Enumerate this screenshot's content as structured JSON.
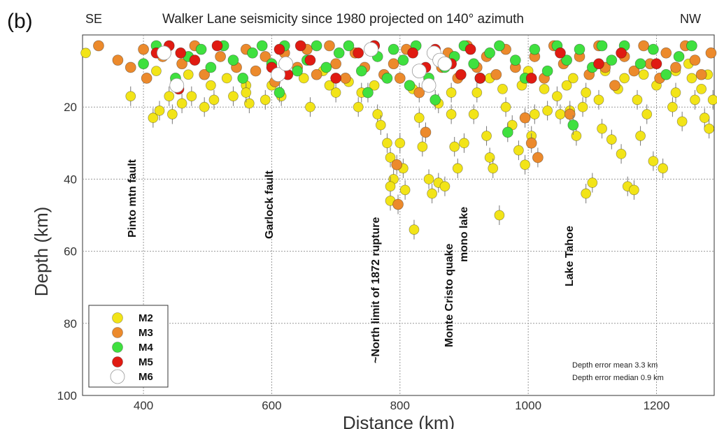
{
  "chart_data": {
    "type": "scatter",
    "panel_label": "(b)",
    "title": "Walker Lane seismicity since 1980 projected on 140° azimuth",
    "left_direction": "SE",
    "right_direction": "NW",
    "xlabel": "Distance (km)",
    "ylabel": "Depth (km)",
    "xlim": [
      305,
      1290
    ],
    "ylim": [
      0,
      100
    ],
    "y_inverted": true,
    "x_ticks": [
      400,
      600,
      800,
      1000,
      1200
    ],
    "y_ticks": [
      20,
      40,
      60,
      80,
      100
    ],
    "grid": true,
    "legend_position": "bottom-left",
    "colors": {
      "M2": "#f2e418",
      "M3": "#ec8a2c",
      "M4": "#3fe03f",
      "M5": "#e01b12",
      "M6": "#ffffff"
    },
    "series": [
      {
        "name": "M2",
        "points": [
          [
            310,
            5
          ],
          [
            415,
            23
          ],
          [
            425,
            21
          ],
          [
            440,
            17
          ],
          [
            445,
            22
          ],
          [
            460,
            19
          ],
          [
            475,
            17
          ],
          [
            495,
            20
          ],
          [
            510,
            18
          ],
          [
            540,
            17
          ],
          [
            565,
            19
          ],
          [
            590,
            18
          ],
          [
            615,
            17
          ],
          [
            660,
            20
          ],
          [
            700,
            16
          ],
          [
            735,
            20
          ],
          [
            765,
            22
          ],
          [
            770,
            25
          ],
          [
            780,
            30
          ],
          [
            785,
            34
          ],
          [
            790,
            40
          ],
          [
            800,
            30
          ],
          [
            805,
            37
          ],
          [
            808,
            43
          ],
          [
            785,
            42
          ],
          [
            785,
            46
          ],
          [
            822,
            54
          ],
          [
            830,
            23
          ],
          [
            835,
            31
          ],
          [
            845,
            40
          ],
          [
            850,
            44
          ],
          [
            860,
            41
          ],
          [
            870,
            42
          ],
          [
            880,
            22
          ],
          [
            885,
            31
          ],
          [
            890,
            37
          ],
          [
            900,
            30
          ],
          [
            915,
            22
          ],
          [
            935,
            28
          ],
          [
            940,
            34
          ],
          [
            945,
            37
          ],
          [
            955,
            50
          ],
          [
            965,
            20
          ],
          [
            975,
            25
          ],
          [
            985,
            32
          ],
          [
            995,
            36
          ],
          [
            1005,
            28
          ],
          [
            1010,
            22
          ],
          [
            1030,
            21
          ],
          [
            1050,
            22
          ],
          [
            1065,
            21
          ],
          [
            1075,
            28
          ],
          [
            1085,
            20
          ],
          [
            1090,
            44
          ],
          [
            1100,
            41
          ],
          [
            1115,
            26
          ],
          [
            1130,
            29
          ],
          [
            1145,
            33
          ],
          [
            1155,
            42
          ],
          [
            1165,
            43
          ],
          [
            1175,
            28
          ],
          [
            1185,
            22
          ],
          [
            1195,
            35
          ],
          [
            1210,
            37
          ],
          [
            1225,
            20
          ],
          [
            1240,
            24
          ],
          [
            1260,
            18
          ],
          [
            1275,
            23
          ],
          [
            1282,
            26
          ],
          [
            1288,
            18
          ],
          [
            380,
            17
          ],
          [
            470,
            11
          ],
          [
            530,
            12
          ],
          [
            560,
            14
          ],
          [
            650,
            12
          ],
          [
            690,
            14
          ],
          [
            720,
            13
          ],
          [
            760,
            14
          ],
          [
            860,
            19
          ],
          [
            880,
            16
          ],
          [
            920,
            16
          ],
          [
            960,
            15
          ],
          [
            990,
            14
          ],
          [
            1025,
            15
          ],
          [
            1045,
            17
          ],
          [
            1070,
            12
          ],
          [
            1090,
            16
          ],
          [
            1110,
            18
          ],
          [
            1140,
            15
          ],
          [
            1170,
            18
          ],
          [
            1200,
            14
          ],
          [
            1230,
            16
          ],
          [
            1255,
            12
          ],
          [
            1270,
            15
          ],
          [
            1280,
            11
          ],
          [
            1250,
            8
          ],
          [
            1230,
            10
          ],
          [
            1180,
            11
          ],
          [
            1150,
            12
          ],
          [
            1120,
            10
          ],
          [
            1060,
            14
          ],
          [
            1000,
            10
          ],
          [
            940,
            12
          ],
          [
            820,
            15
          ],
          [
            740,
            16
          ],
          [
            680,
            10
          ],
          [
            600,
            14
          ],
          [
            560,
            16
          ],
          [
            505,
            14
          ],
          [
            450,
            13
          ],
          [
            420,
            10
          ]
        ]
      },
      {
        "name": "M3",
        "points": [
          [
            330,
            3
          ],
          [
            360,
            7
          ],
          [
            380,
            9
          ],
          [
            400,
            4
          ],
          [
            405,
            12
          ],
          [
            430,
            6
          ],
          [
            460,
            8
          ],
          [
            480,
            3
          ],
          [
            495,
            11
          ],
          [
            520,
            6
          ],
          [
            545,
            9
          ],
          [
            560,
            4
          ],
          [
            575,
            10
          ],
          [
            590,
            6
          ],
          [
            605,
            13
          ],
          [
            620,
            5
          ],
          [
            640,
            9
          ],
          [
            655,
            4
          ],
          [
            670,
            11
          ],
          [
            690,
            3
          ],
          [
            700,
            8
          ],
          [
            715,
            12
          ],
          [
            730,
            5
          ],
          [
            745,
            9
          ],
          [
            760,
            3
          ],
          [
            775,
            11
          ],
          [
            790,
            8
          ],
          [
            800,
            12
          ],
          [
            810,
            4
          ],
          [
            830,
            16
          ],
          [
            840,
            27
          ],
          [
            865,
            9
          ],
          [
            875,
            5
          ],
          [
            890,
            12
          ],
          [
            905,
            3
          ],
          [
            920,
            9
          ],
          [
            935,
            6
          ],
          [
            950,
            11
          ],
          [
            965,
            4
          ],
          [
            980,
            9
          ],
          [
            995,
            23
          ],
          [
            1010,
            6
          ],
          [
            1015,
            34
          ],
          [
            1025,
            12
          ],
          [
            1040,
            3
          ],
          [
            1055,
            8
          ],
          [
            1065,
            22
          ],
          [
            1080,
            6
          ],
          [
            1095,
            11
          ],
          [
            1110,
            3
          ],
          [
            1120,
            9
          ],
          [
            1135,
            14
          ],
          [
            1150,
            6
          ],
          [
            1165,
            10
          ],
          [
            1180,
            3
          ],
          [
            1190,
            8
          ],
          [
            1205,
            12
          ],
          [
            1215,
            5
          ],
          [
            1230,
            9
          ],
          [
            1245,
            3
          ],
          [
            1260,
            7
          ],
          [
            1270,
            11
          ],
          [
            1285,
            5
          ],
          [
            795,
            36
          ],
          [
            797,
            47
          ],
          [
            1005,
            30
          ]
        ]
      },
      {
        "name": "M4",
        "points": [
          [
            400,
            8
          ],
          [
            420,
            3
          ],
          [
            450,
            12
          ],
          [
            470,
            6
          ],
          [
            490,
            4
          ],
          [
            505,
            9
          ],
          [
            525,
            3
          ],
          [
            540,
            7
          ],
          [
            555,
            12
          ],
          [
            570,
            5
          ],
          [
            585,
            3
          ],
          [
            600,
            8
          ],
          [
            612,
            16
          ],
          [
            620,
            3
          ],
          [
            640,
            10
          ],
          [
            655,
            7
          ],
          [
            670,
            3
          ],
          [
            685,
            9
          ],
          [
            705,
            5
          ],
          [
            720,
            3
          ],
          [
            740,
            10
          ],
          [
            750,
            16
          ],
          [
            765,
            6
          ],
          [
            780,
            12
          ],
          [
            790,
            4
          ],
          [
            805,
            7
          ],
          [
            815,
            14
          ],
          [
            825,
            3
          ],
          [
            845,
            12
          ],
          [
            855,
            18
          ],
          [
            870,
            9
          ],
          [
            885,
            6
          ],
          [
            900,
            3
          ],
          [
            915,
            8
          ],
          [
            925,
            12
          ],
          [
            940,
            5
          ],
          [
            955,
            3
          ],
          [
            968,
            27
          ],
          [
            980,
            7
          ],
          [
            995,
            12
          ],
          [
            1010,
            4
          ],
          [
            1030,
            10
          ],
          [
            1045,
            3
          ],
          [
            1060,
            7
          ],
          [
            1070,
            25
          ],
          [
            1080,
            4
          ],
          [
            1100,
            9
          ],
          [
            1115,
            3
          ],
          [
            1130,
            7
          ],
          [
            1150,
            3
          ],
          [
            1175,
            8
          ],
          [
            1195,
            4
          ],
          [
            1215,
            11
          ],
          [
            1235,
            6
          ],
          [
            1255,
            3
          ]
        ]
      },
      {
        "name": "M5",
        "points": [
          [
            420,
            5
          ],
          [
            440,
            3
          ],
          [
            458,
            5
          ],
          [
            455,
            15
          ],
          [
            480,
            7
          ],
          [
            515,
            3
          ],
          [
            600,
            9
          ],
          [
            612,
            4
          ],
          [
            625,
            11
          ],
          [
            645,
            3
          ],
          [
            660,
            7
          ],
          [
            700,
            12
          ],
          [
            735,
            5
          ],
          [
            760,
            3
          ],
          [
            820,
            5
          ],
          [
            840,
            9
          ],
          [
            855,
            4
          ],
          [
            880,
            8
          ],
          [
            895,
            11
          ],
          [
            910,
            4
          ],
          [
            925,
            12
          ],
          [
            1005,
            12
          ],
          [
            1050,
            5
          ],
          [
            1110,
            8
          ],
          [
            1145,
            5
          ],
          [
            1200,
            8
          ]
        ]
      },
      {
        "name": "M6",
        "points": [
          [
            432,
            5
          ],
          [
            452,
            14
          ],
          [
            610,
            11
          ],
          [
            622,
            8
          ],
          [
            755,
            4
          ],
          [
            830,
            10
          ],
          [
            853,
            5
          ],
          [
            862,
            7
          ],
          [
            870,
            8
          ],
          [
            845,
            14
          ]
        ]
      }
    ],
    "annotations": [
      "Pinto mtn fault",
      "Garlock fault",
      "~North limit  of 1872 rupture",
      "Monte Cristo quake",
      "mono lake",
      "Lake Tahoe"
    ],
    "notes": [
      "Depth error mean 3.3 km",
      "Depth  error median 0.9 km"
    ]
  }
}
